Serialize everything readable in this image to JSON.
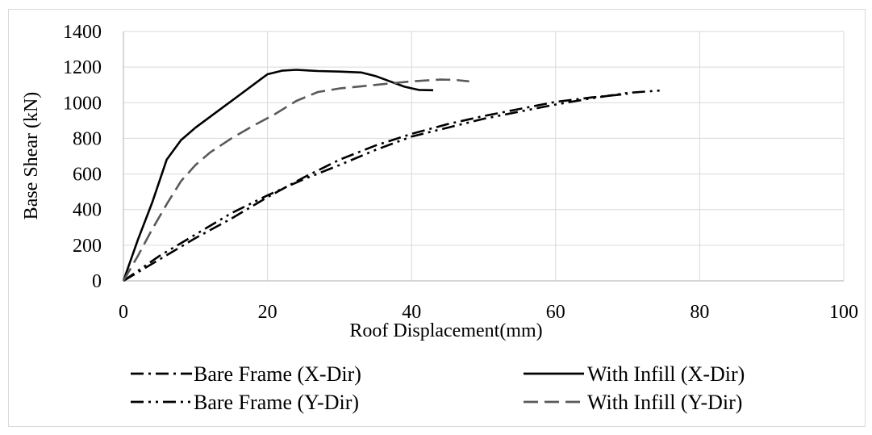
{
  "chart_data": {
    "type": "line",
    "xlabel": "Roof Displacement(mm)",
    "ylabel": "Base Shear (kN)",
    "xlim": [
      0,
      100
    ],
    "ylim": [
      0,
      1400
    ],
    "xticks": [
      0,
      20,
      40,
      60,
      80,
      100
    ],
    "yticks": [
      0,
      200,
      400,
      600,
      800,
      1000,
      1200,
      1400
    ],
    "grid": "both",
    "legend_position": "bottom",
    "series": [
      {
        "name": "Bare Frame (X-Dir)",
        "line_style": "dash-dot",
        "color": "#000000",
        "points": [
          [
            0,
            0
          ],
          [
            5,
            120
          ],
          [
            10,
            240
          ],
          [
            15,
            350
          ],
          [
            20,
            470
          ],
          [
            25,
            580
          ],
          [
            30,
            680
          ],
          [
            35,
            760
          ],
          [
            40,
            825
          ],
          [
            45,
            880
          ],
          [
            50,
            925
          ],
          [
            55,
            965
          ],
          [
            60,
            1005
          ],
          [
            65,
            1030
          ],
          [
            70,
            1050
          ]
        ]
      },
      {
        "name": "With Infill (X-Dir)",
        "line_style": "solid",
        "color": "#000000",
        "points": [
          [
            0,
            0
          ],
          [
            2,
            230
          ],
          [
            4,
            440
          ],
          [
            6,
            680
          ],
          [
            8,
            790
          ],
          [
            10,
            860
          ],
          [
            13,
            950
          ],
          [
            16,
            1040
          ],
          [
            19,
            1130
          ],
          [
            20,
            1160
          ],
          [
            22,
            1180
          ],
          [
            24,
            1185
          ],
          [
            27,
            1178
          ],
          [
            30,
            1175
          ],
          [
            33,
            1170
          ],
          [
            35,
            1150
          ],
          [
            37,
            1120
          ],
          [
            39,
            1090
          ],
          [
            41,
            1072
          ],
          [
            43,
            1070
          ]
        ]
      },
      {
        "name": "Bare Frame (Y-Dir)",
        "line_style": "dash-dot-dot",
        "color": "#000000",
        "points": [
          [
            0,
            0
          ],
          [
            5,
            140
          ],
          [
            10,
            260
          ],
          [
            15,
            380
          ],
          [
            20,
            480
          ],
          [
            25,
            570
          ],
          [
            30,
            650
          ],
          [
            35,
            735
          ],
          [
            40,
            810
          ],
          [
            45,
            860
          ],
          [
            50,
            910
          ],
          [
            55,
            950
          ],
          [
            60,
            990
          ],
          [
            65,
            1025
          ],
          [
            70,
            1055
          ],
          [
            75,
            1070
          ]
        ]
      },
      {
        "name": "With Infill (Y-Dir)",
        "line_style": "long-dash",
        "color": "#595959",
        "points": [
          [
            0,
            0
          ],
          [
            2,
            140
          ],
          [
            4,
            290
          ],
          [
            6,
            430
          ],
          [
            8,
            560
          ],
          [
            10,
            650
          ],
          [
            12,
            720
          ],
          [
            15,
            800
          ],
          [
            18,
            870
          ],
          [
            21,
            935
          ],
          [
            24,
            1010
          ],
          [
            27,
            1060
          ],
          [
            30,
            1080
          ],
          [
            35,
            1100
          ],
          [
            40,
            1120
          ],
          [
            44,
            1130
          ],
          [
            46,
            1128
          ],
          [
            48,
            1120
          ]
        ]
      }
    ]
  }
}
